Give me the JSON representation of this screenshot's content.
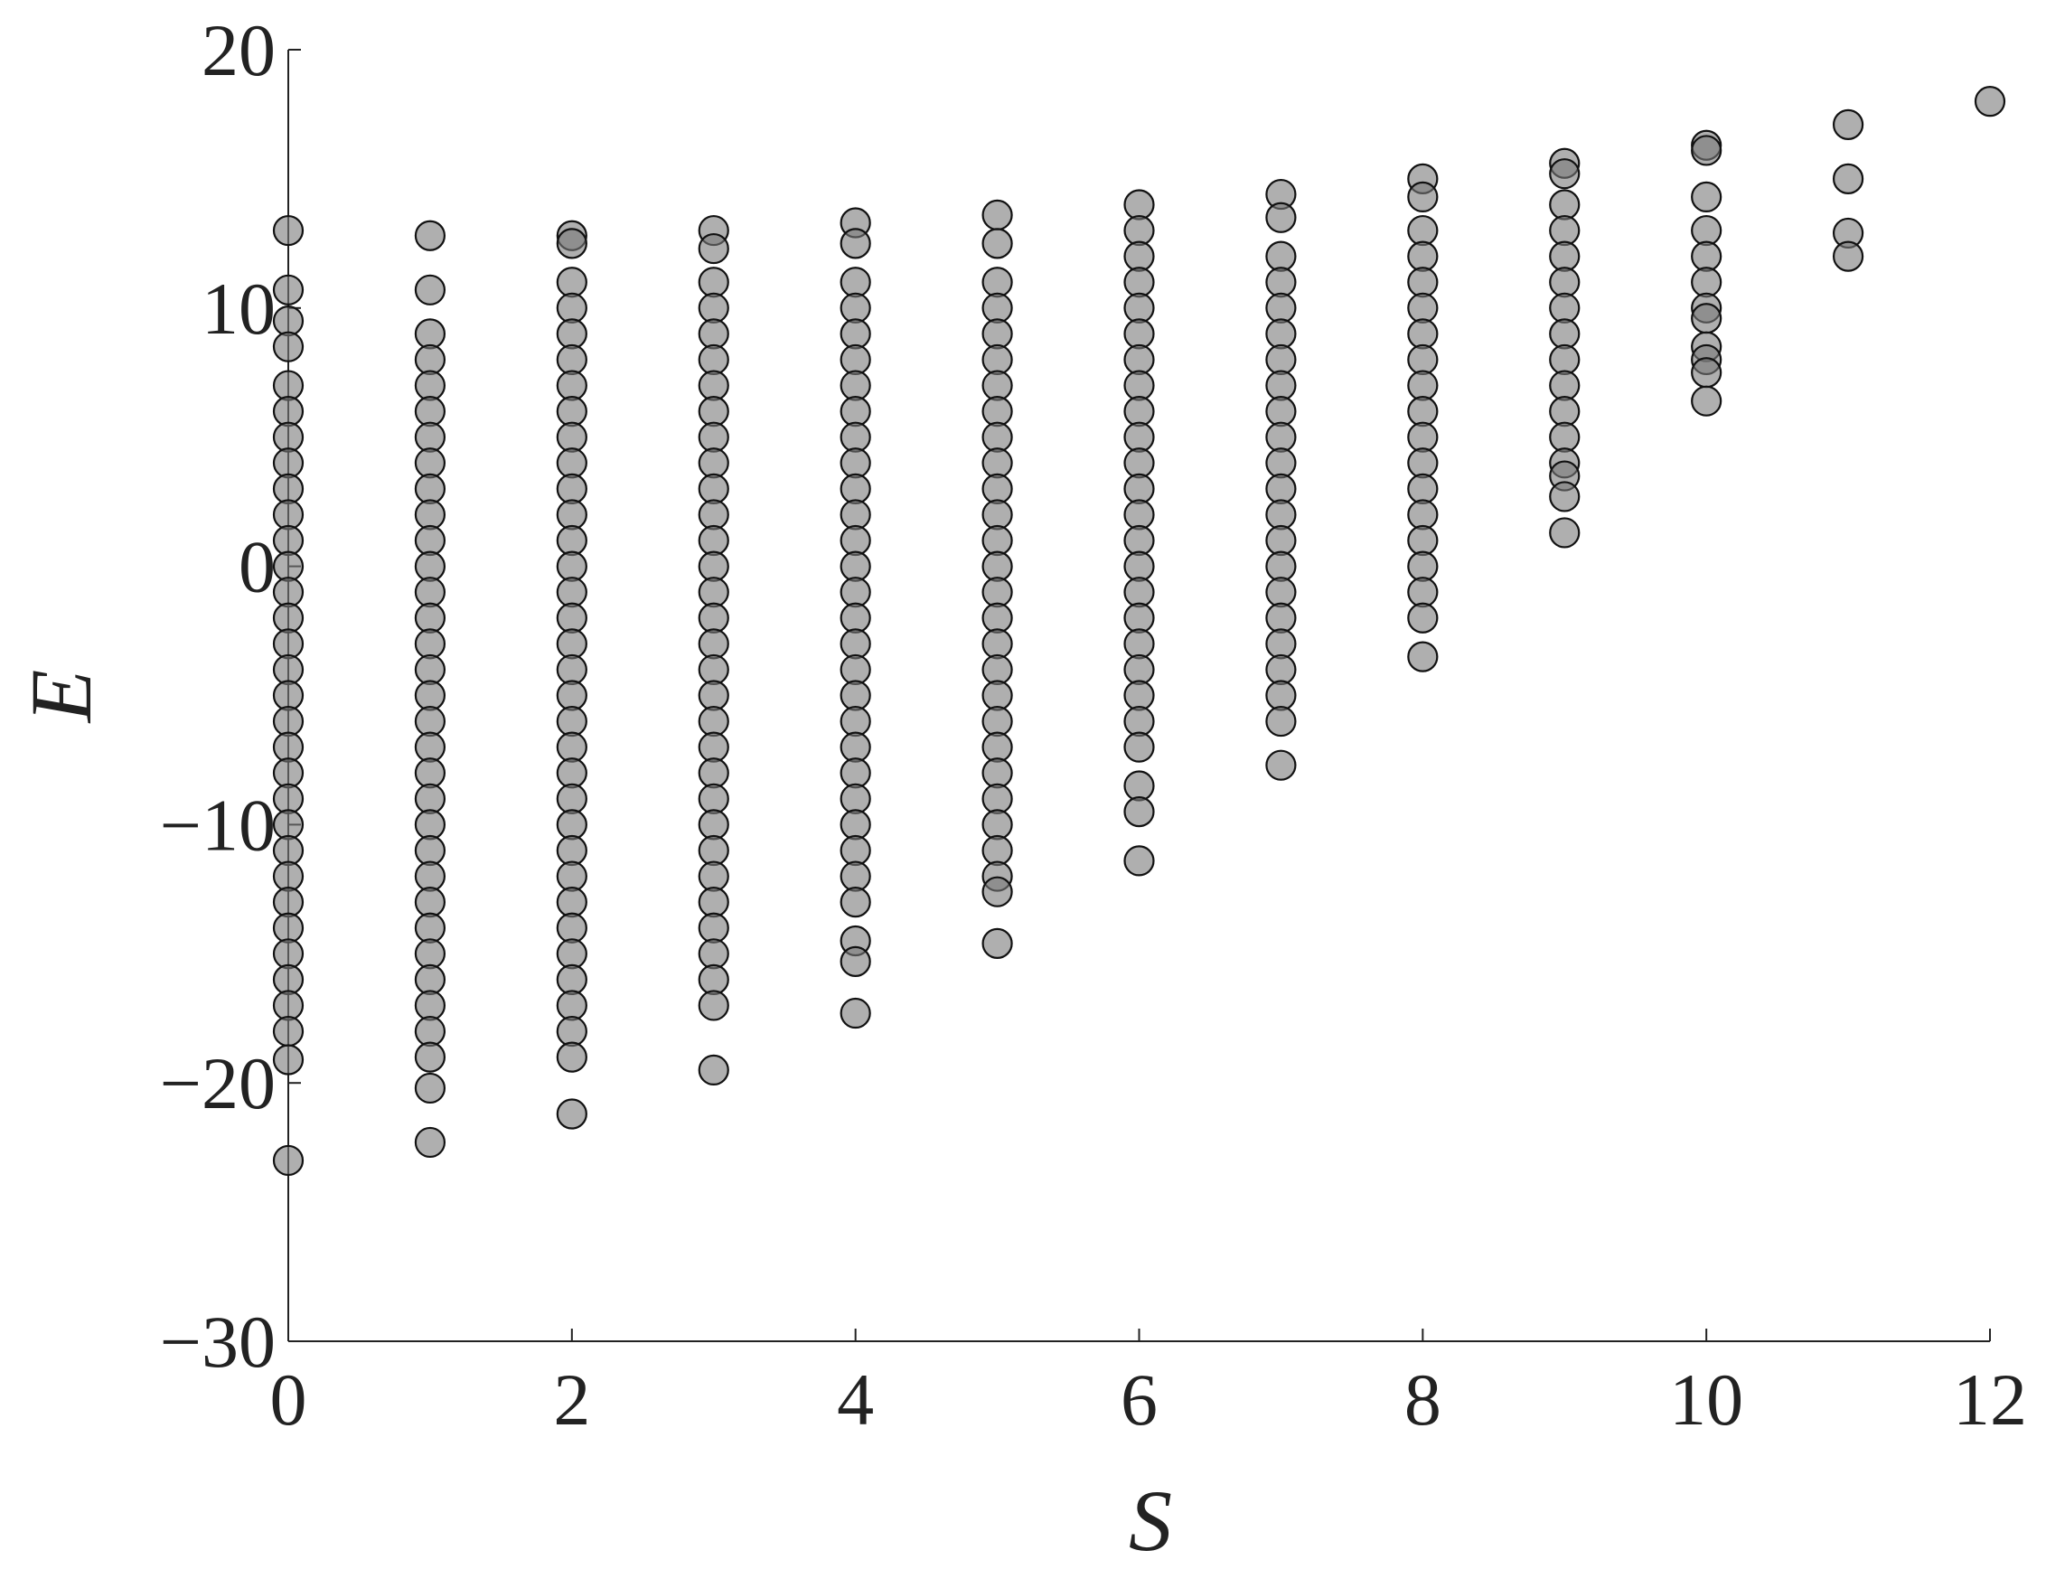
{
  "chart_data": {
    "type": "scatter",
    "x_label": "S",
    "y_label": "E",
    "xlim": [
      0,
      12
    ],
    "ylim": [
      -30,
      20
    ],
    "xticks": [
      0,
      2,
      4,
      6,
      8,
      10,
      12
    ],
    "yticks": [
      {
        "value": -30,
        "label": "−30"
      },
      {
        "value": -20,
        "label": "−20"
      },
      {
        "value": -10,
        "label": "−10"
      },
      0,
      10,
      20
    ],
    "color": "#7a7a7a",
    "series": [
      {
        "x": 0,
        "values": [
          13,
          10.7,
          9.5,
          8.5,
          7,
          6,
          5,
          4,
          3,
          2,
          1,
          0,
          -1,
          -2,
          -3,
          -4,
          -5,
          -6,
          -7,
          -8,
          -9,
          -10,
          -11,
          -12,
          -13,
          -14,
          -15,
          -16,
          -17,
          -18,
          -19.1,
          -23
        ]
      },
      {
        "x": 1,
        "values": [
          12.8,
          10.7,
          9,
          8,
          7,
          6,
          5,
          4,
          3,
          2,
          1,
          0,
          -1,
          -2,
          -3,
          -4,
          -5,
          -6,
          -7,
          -8,
          -9,
          -10,
          -11,
          -12,
          -13,
          -14,
          -15,
          -16,
          -17,
          -18,
          -19,
          -20.2,
          -22.3
        ]
      },
      {
        "x": 2,
        "values": [
          12.8,
          12.5,
          11,
          10,
          9,
          8,
          7,
          6,
          5,
          4,
          3,
          2,
          1,
          0,
          -1,
          -2,
          -3,
          -4,
          -5,
          -6,
          -7,
          -8,
          -9,
          -10,
          -11,
          -12,
          -13,
          -14,
          -15,
          -16,
          -17,
          -18,
          -19,
          -21.2
        ]
      },
      {
        "x": 3,
        "values": [
          13,
          12.3,
          11,
          10,
          9,
          8,
          7,
          6,
          5,
          4,
          3,
          2,
          1,
          0,
          -1,
          -2,
          -3,
          -4,
          -5,
          -6,
          -7,
          -8,
          -9,
          -10,
          -11,
          -12,
          -13,
          -14,
          -15,
          -16,
          -17,
          -19.5
        ]
      },
      {
        "x": 4,
        "values": [
          13.3,
          12.5,
          11,
          10,
          9,
          8,
          7,
          6,
          5,
          4,
          3,
          2,
          1,
          0,
          -1,
          -2,
          -3,
          -4,
          -5,
          -6,
          -7,
          -8,
          -9,
          -10,
          -11,
          -12,
          -13,
          -14.5,
          -15.3,
          -17.3
        ]
      },
      {
        "x": 5,
        "values": [
          13.6,
          12.5,
          11,
          10,
          9,
          8,
          7,
          6,
          5,
          4,
          3,
          2,
          1,
          0,
          -1,
          -2,
          -3,
          -4,
          -5,
          -6,
          -7,
          -8,
          -9,
          -10,
          -11,
          -12,
          -12.6,
          -14.6
        ]
      },
      {
        "x": 6,
        "values": [
          14,
          13,
          12,
          11,
          10,
          9,
          8,
          7,
          6,
          5,
          4,
          3,
          2,
          1,
          0,
          -1,
          -2,
          -3,
          -4,
          -5,
          -6,
          -7,
          -8.5,
          -9.5,
          -11.4
        ]
      },
      {
        "x": 7,
        "values": [
          14.4,
          13.5,
          12,
          11,
          10,
          9,
          8,
          7,
          6,
          5,
          4,
          3,
          2,
          1,
          0,
          -1,
          -2,
          -3,
          -4,
          -5,
          -6,
          -7.7
        ]
      },
      {
        "x": 8,
        "values": [
          15,
          14.3,
          13,
          12,
          11,
          10,
          9,
          8,
          7,
          6,
          5,
          4,
          3,
          2,
          1,
          0,
          -1,
          -2,
          -3.5
        ]
      },
      {
        "x": 9,
        "values": [
          15.6,
          15.2,
          14,
          13,
          12,
          11,
          10,
          9,
          8,
          7,
          6,
          5,
          4,
          3.5,
          2.7,
          1.3
        ]
      },
      {
        "x": 10,
        "values": [
          16.3,
          16.1,
          14.3,
          13,
          12,
          11,
          10,
          9.6,
          8.5,
          8,
          7.5,
          6.4
        ]
      },
      {
        "x": 11,
        "values": [
          17.1,
          15,
          12.9,
          12
        ]
      },
      {
        "x": 12,
        "values": [
          18
        ]
      }
    ]
  }
}
